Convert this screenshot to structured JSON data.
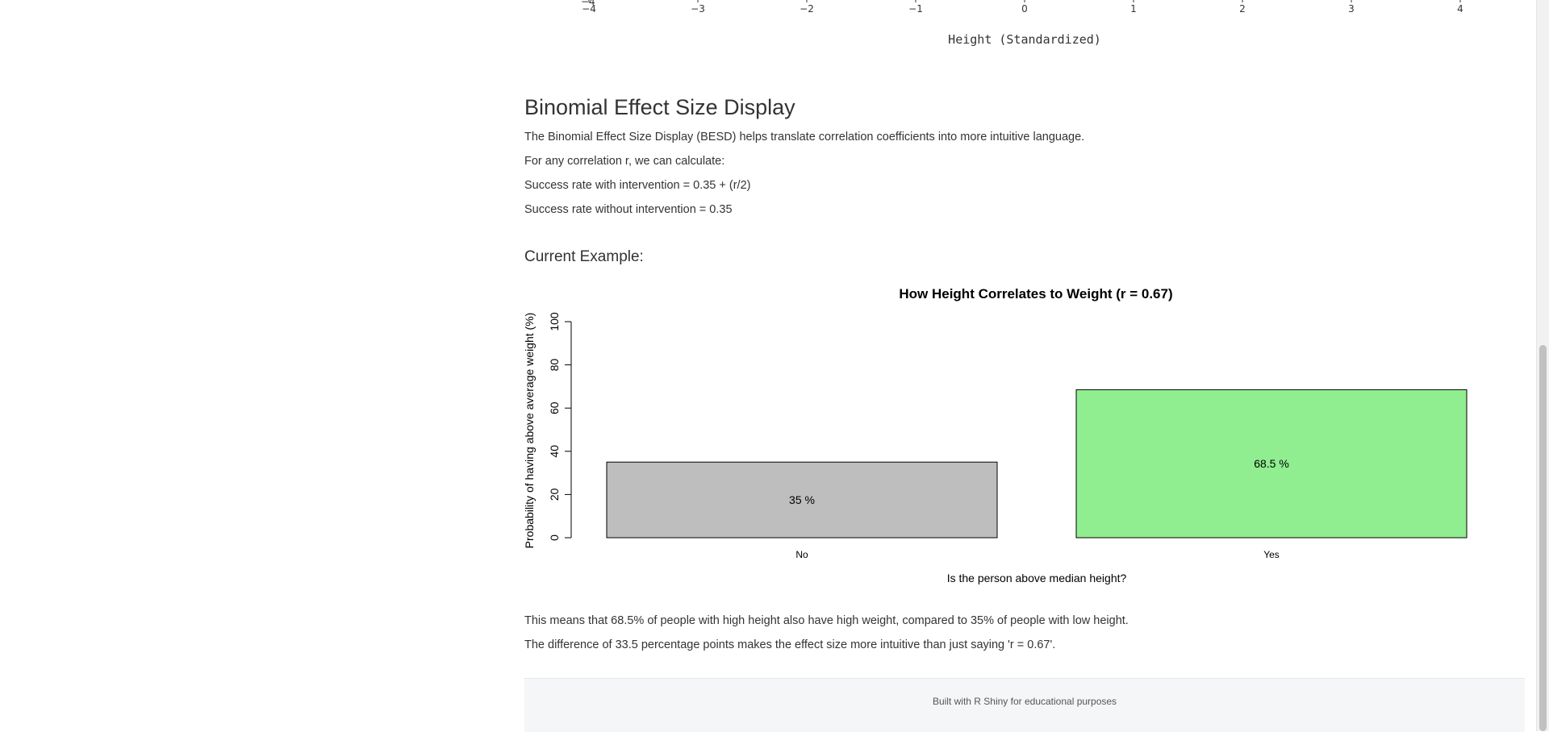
{
  "previous_plot": {
    "x_ticks": [
      "−4",
      "−3",
      "−2",
      "−1",
      "0",
      "1",
      "2",
      "3",
      "4"
    ],
    "x_tick_values": [
      -4,
      -3,
      -2,
      -1,
      0,
      1,
      2,
      3,
      4
    ],
    "clipped_label": "−4",
    "xlabel": "Height (Standardized)"
  },
  "besd": {
    "title": "Binomial Effect Size Display",
    "intro": "The Binomial Effect Size Display (BESD) helps translate correlation coefficients into more intuitive language.",
    "calc_intro": "For any correlation r, we can calculate:",
    "formula_with": "Success rate with intervention = 0.35 + (r/2)",
    "formula_without": "Success rate without intervention = 0.35",
    "example_heading": "Current Example:",
    "interpretation": "This means that 68.5% of people with high height also have high weight, compared to 35% of people with low height.",
    "difference": "The difference of 33.5 percentage points makes the effect size more intuitive than just saying 'r = 0.67'."
  },
  "chart_data": {
    "type": "bar",
    "title": "How Height Correlates to Weight (r = 0.67)",
    "xlabel": "Is the person above median height?",
    "ylabel": "Probability of having above average weight (%)",
    "categories": [
      "No",
      "Yes"
    ],
    "values": [
      35,
      68.5
    ],
    "value_labels": [
      "35 %",
      "68.5 %"
    ],
    "colors": [
      "#bebebe",
      "#90ee90"
    ],
    "ylim": [
      0,
      100
    ],
    "y_ticks": [
      0,
      20,
      40,
      60,
      80,
      100
    ],
    "grid": false
  },
  "footer": {
    "text": "Built with R Shiny for educational purposes"
  }
}
